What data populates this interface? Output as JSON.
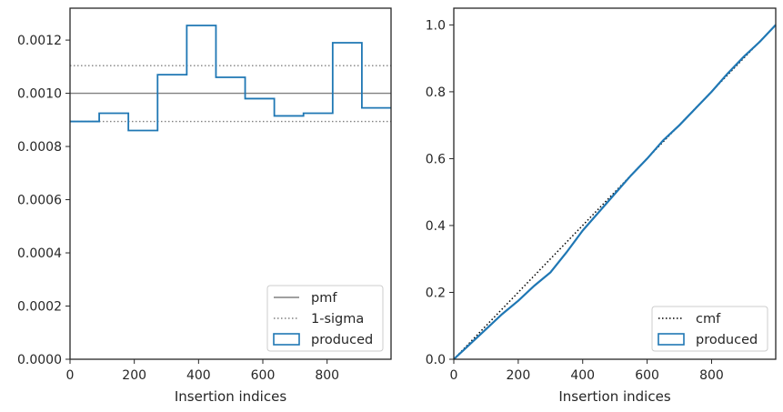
{
  "chart_data": [
    {
      "type": "step",
      "xlabel": "Insertion indices",
      "ylabel": "",
      "xlim": [
        0,
        999
      ],
      "ylim": [
        0,
        0.00132
      ],
      "xticks": [
        0,
        200,
        400,
        600,
        800
      ],
      "xtick_labels": [
        "0",
        "200",
        "400",
        "600",
        "800"
      ],
      "yticks": [
        0,
        0.0002,
        0.0004,
        0.0006,
        0.0008,
        0.001,
        0.0012
      ],
      "ytick_labels": [
        "0.0000",
        "0.0002",
        "0.0004",
        "0.0006",
        "0.0008",
        "0.0010",
        "0.0012"
      ],
      "grid": false,
      "legend": "bottom-right",
      "lines": [
        {
          "name": "pmf",
          "y": 0.001,
          "color": "#808080",
          "style": "solid"
        },
        {
          "name": "1-sigma",
          "y": [
            0.000894,
            0.001104
          ],
          "color": "#808080",
          "style": "dotted"
        }
      ],
      "series": [
        {
          "name": "produced",
          "color": "#1f77b4",
          "bin_edges": [
            0,
            90.8,
            181.6,
            272.5,
            363.3,
            454.1,
            544.9,
            635.7,
            726.5,
            817.4,
            908.2,
            999
          ],
          "values": [
            0.000894,
            0.000925,
            0.00086,
            0.00107,
            0.001255,
            0.00106,
            0.00098,
            0.000915,
            0.000925,
            0.00119,
            0.000945
          ]
        }
      ]
    },
    {
      "type": "line",
      "xlabel": "Insertion indices",
      "ylabel": "",
      "xlim": [
        0,
        999
      ],
      "ylim": [
        0,
        1.05
      ],
      "xticks": [
        0,
        200,
        400,
        600,
        800
      ],
      "xtick_labels": [
        "0",
        "200",
        "400",
        "600",
        "800"
      ],
      "yticks": [
        0,
        0.2,
        0.4,
        0.6,
        0.8,
        1.0
      ],
      "ytick_labels": [
        "0.0",
        "0.2",
        "0.4",
        "0.6",
        "0.8",
        "1.0"
      ],
      "grid": false,
      "legend": "bottom-right",
      "series": [
        {
          "name": "cmf",
          "color": "#000000",
          "style": "dotted",
          "x": [
            0,
            999
          ],
          "y": [
            0,
            1.0
          ]
        },
        {
          "name": "produced",
          "color": "#1f77b4",
          "style": "solid",
          "x": [
            0,
            50,
            100,
            150,
            200,
            250,
            300,
            350,
            400,
            450,
            500,
            550,
            600,
            650,
            700,
            750,
            800,
            850,
            900,
            950,
            999
          ],
          "y": [
            0,
            0.045,
            0.09,
            0.135,
            0.175,
            0.22,
            0.26,
            0.32,
            0.385,
            0.44,
            0.495,
            0.55,
            0.6,
            0.655,
            0.7,
            0.75,
            0.8,
            0.855,
            0.905,
            0.95,
            1.0
          ]
        }
      ]
    }
  ]
}
